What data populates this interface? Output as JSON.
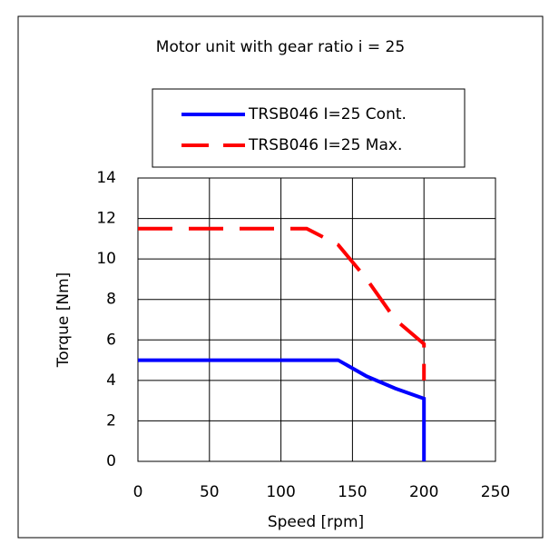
{
  "chart_data": {
    "type": "line",
    "title": "Motor unit with gear ratio i = 25",
    "x_label": "Speed [rpm]",
    "y_label": "Torque [Nm]",
    "xlim": [
      0,
      250
    ],
    "xticks": [
      0,
      50,
      100,
      150,
      200,
      250
    ],
    "ylim": [
      0,
      14
    ],
    "yticks": [
      0,
      2,
      4,
      6,
      8,
      10,
      12,
      14
    ],
    "grid": true,
    "legend": "top",
    "series": [
      {
        "name": "TRSB046 I=25 Cont.",
        "color": "#0000ff",
        "dashed": false,
        "x": [
          0,
          140,
          160,
          180,
          200,
          200
        ],
        "values": [
          5,
          5,
          4.2,
          3.6,
          3.1,
          0
        ]
      },
      {
        "name": "TRSB046 I=25 Max.",
        "color": "#ff0000",
        "dashed": true,
        "x": [
          0,
          118,
          140,
          160,
          180,
          200,
          200
        ],
        "values": [
          11.5,
          11.5,
          10.7,
          9,
          7,
          5.8,
          4
        ]
      }
    ]
  }
}
